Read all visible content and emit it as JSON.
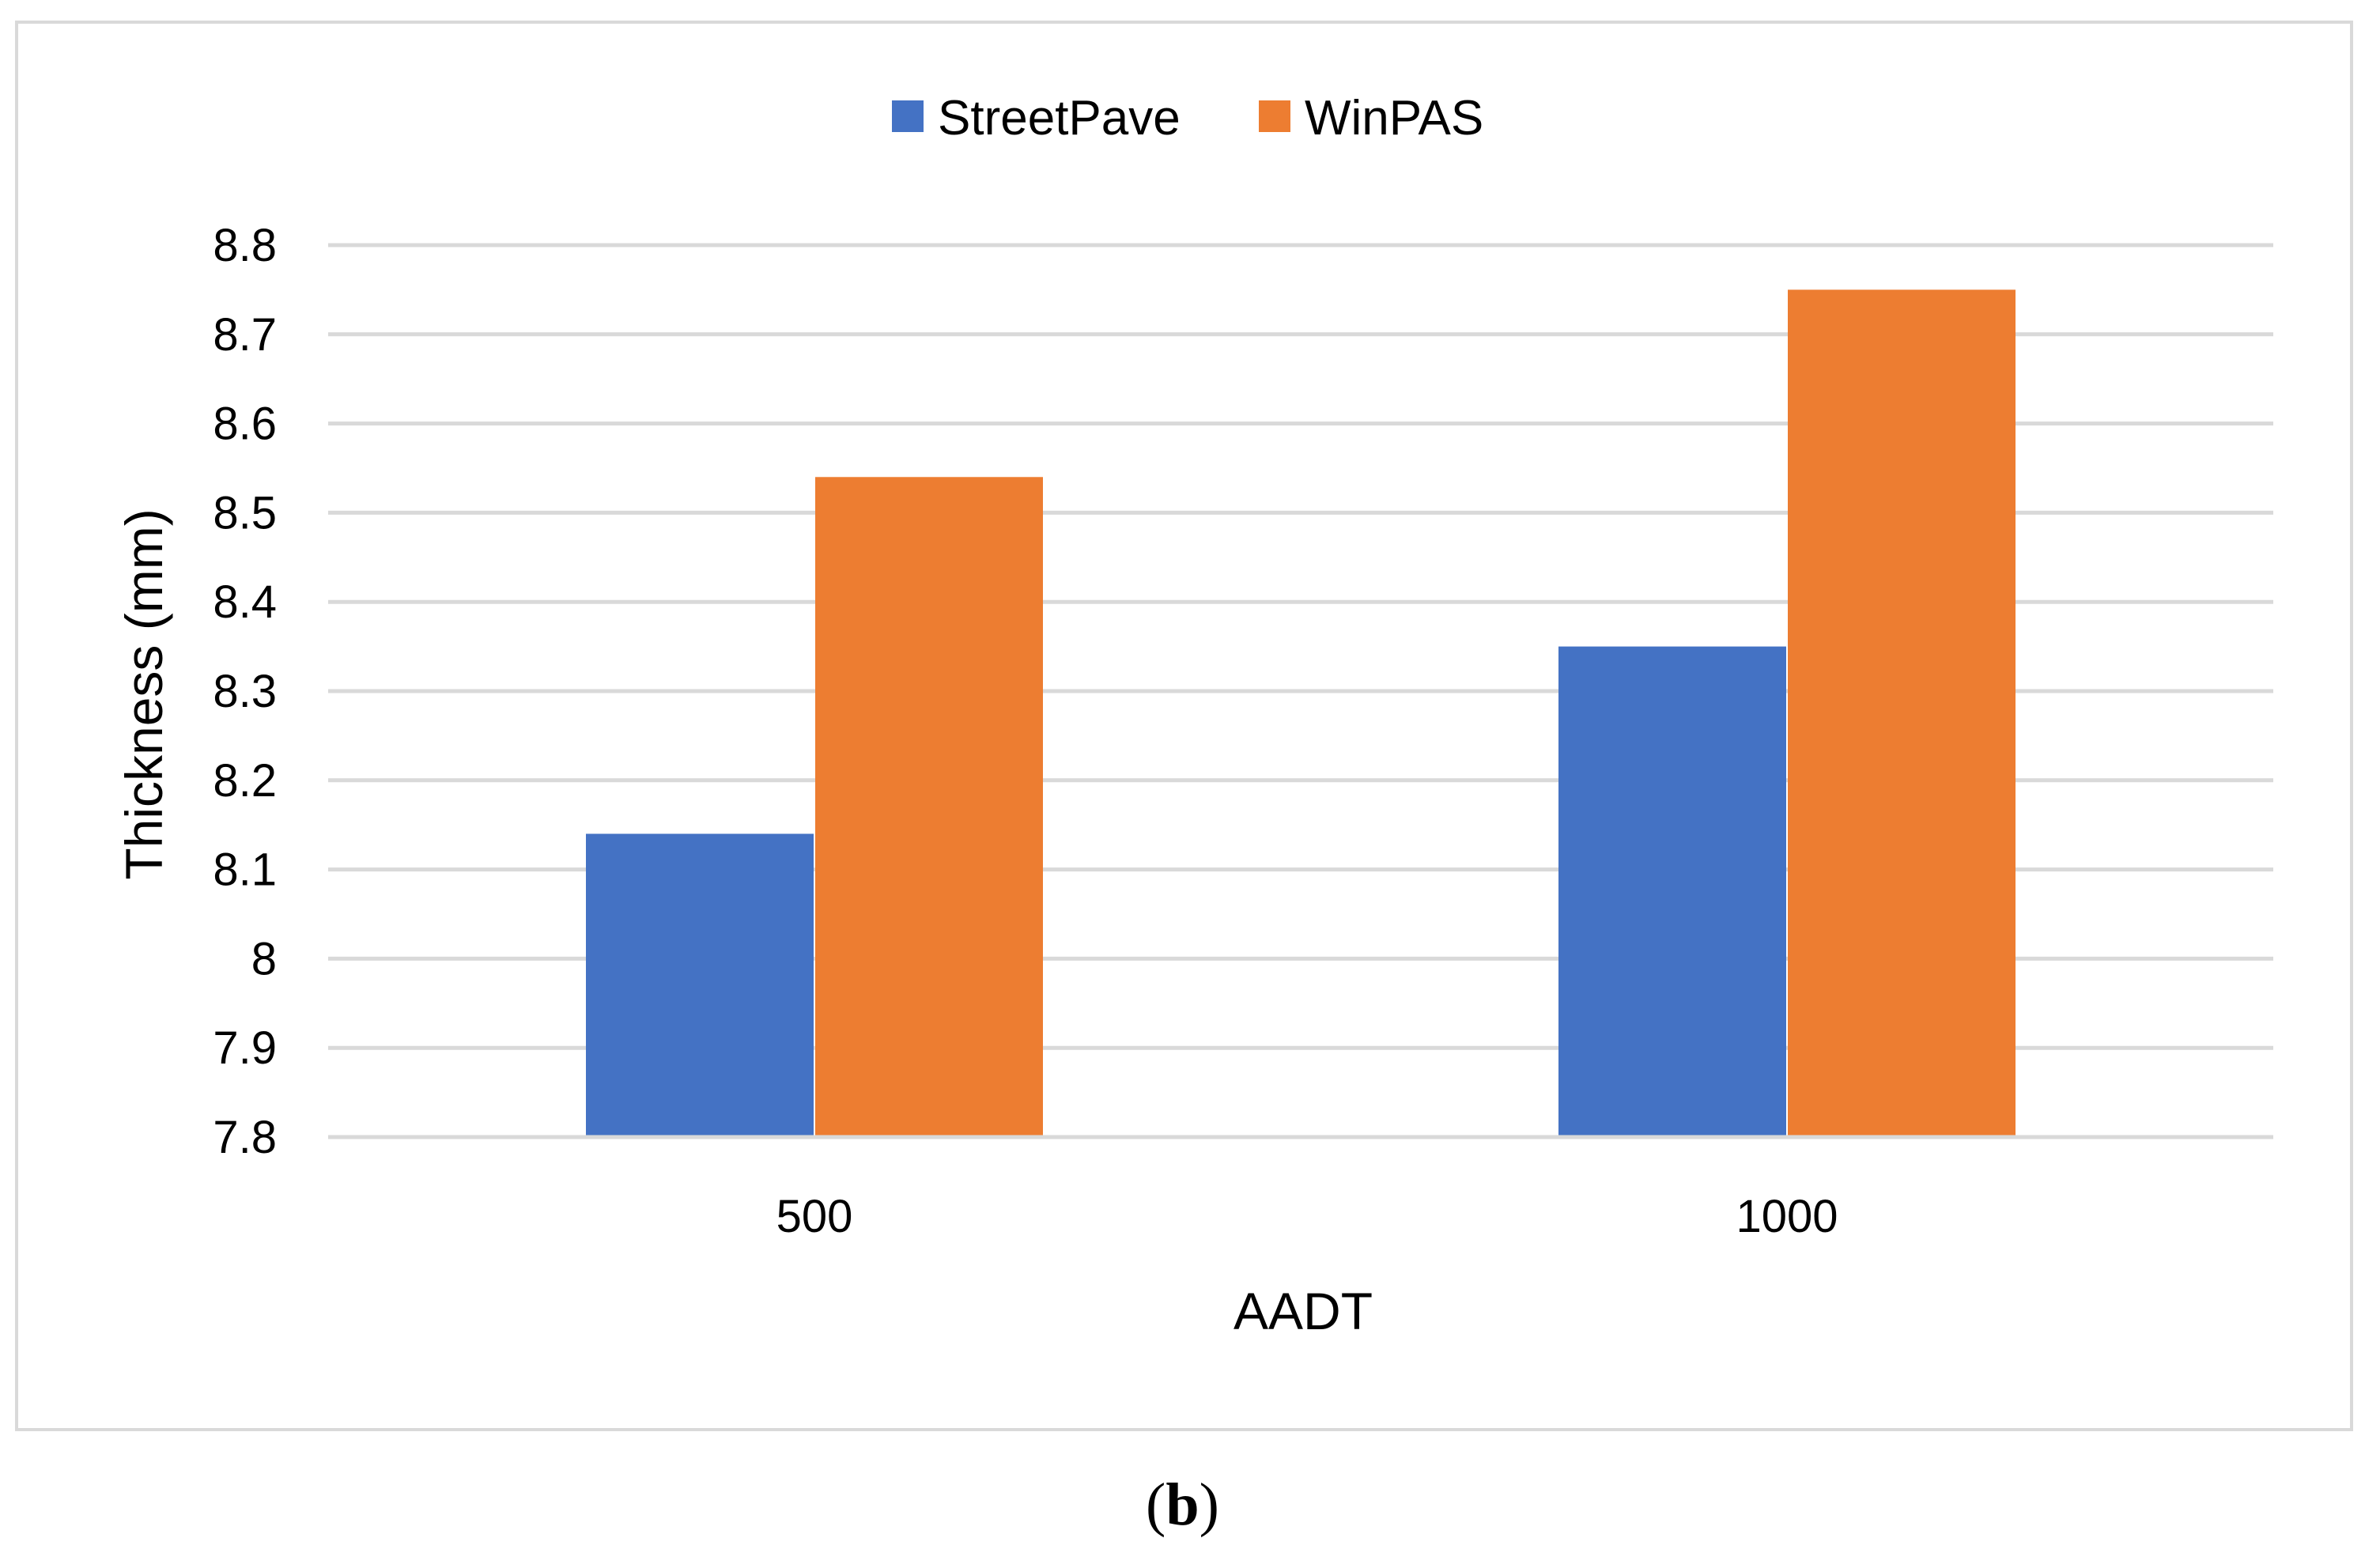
{
  "chart_data": {
    "type": "bar",
    "title": "",
    "xlabel": "AADT",
    "ylabel": "Thickness (mm)",
    "categories": [
      "500",
      "1000"
    ],
    "series": [
      {
        "name": "StreetPave",
        "color": "#4472C4",
        "values": [
          8.14,
          8.35
        ]
      },
      {
        "name": "WinPAS",
        "color": "#ED7D31",
        "values": [
          8.54,
          8.75
        ]
      }
    ],
    "ylim": [
      7.8,
      8.8
    ],
    "yticks": [
      "7.8",
      "7.9",
      "8",
      "8.1",
      "8.2",
      "8.3",
      "8.4",
      "8.5",
      "8.6",
      "8.7",
      "8.8"
    ],
    "grid": true,
    "legend_position": "top-center"
  },
  "caption": {
    "open": "(",
    "letter": "b",
    "close": ")"
  }
}
